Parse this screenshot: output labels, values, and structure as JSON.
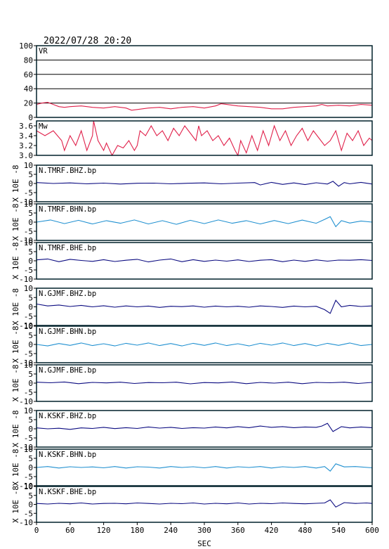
{
  "chart_data": {
    "type": "line",
    "title": "2022/07/28 20:20",
    "xlabel": "SEC",
    "xlim": [
      0,
      600
    ],
    "xticks": [
      0,
      60,
      120,
      180,
      240,
      300,
      360,
      420,
      480,
      540,
      600
    ],
    "colors": {
      "vr": "#e0204a",
      "dark": "#0a0a80",
      "light": "#1e8fd0",
      "frame": "#00202a"
    },
    "panels": [
      {
        "id": "vr",
        "label": "VR",
        "ylim": [
          0,
          100
        ],
        "yticks": [
          0,
          20,
          40,
          60,
          80,
          100
        ],
        "grid": true,
        "color": "vr",
        "x": [
          0,
          10,
          20,
          30,
          40,
          50,
          60,
          80,
          100,
          120,
          140,
          160,
          170,
          180,
          200,
          220,
          240,
          260,
          280,
          300,
          320,
          330,
          340,
          360,
          380,
          400,
          420,
          440,
          460,
          480,
          500,
          510,
          520,
          540,
          560,
          580,
          600
        ],
        "values": [
          18,
          20,
          21,
          18,
          15,
          14,
          15,
          16,
          14,
          13,
          15,
          13,
          10,
          11,
          13,
          14,
          12,
          14,
          15,
          13,
          16,
          19,
          18,
          16,
          15,
          14,
          12,
          12,
          14,
          15,
          16,
          18,
          16,
          17,
          16,
          18,
          17
        ]
      },
      {
        "id": "mw",
        "label": "Mw",
        "ylim": [
          3.0,
          3.7
        ],
        "yticks": [
          3.0,
          3.2,
          3.4,
          3.6
        ],
        "grid": false,
        "color": "vr",
        "x": [
          0,
          15,
          30,
          45,
          50,
          60,
          70,
          80,
          90,
          100,
          102,
          110,
          120,
          125,
          135,
          145,
          155,
          165,
          175,
          180,
          185,
          195,
          205,
          215,
          225,
          235,
          245,
          255,
          265,
          275,
          285,
          290,
          295,
          305,
          315,
          325,
          335,
          345,
          355,
          360,
          365,
          375,
          385,
          395,
          405,
          415,
          425,
          435,
          445,
          455,
          465,
          475,
          485,
          495,
          505,
          515,
          525,
          535,
          545,
          555,
          565,
          575,
          585,
          595,
          600
        ],
        "values": [
          3.5,
          3.4,
          3.5,
          3.3,
          3.1,
          3.4,
          3.2,
          3.5,
          3.1,
          3.4,
          3.7,
          3.3,
          3.1,
          3.25,
          3.0,
          3.2,
          3.15,
          3.3,
          3.1,
          3.2,
          3.5,
          3.4,
          3.6,
          3.4,
          3.5,
          3.3,
          3.55,
          3.4,
          3.6,
          3.45,
          3.3,
          3.6,
          3.4,
          3.5,
          3.3,
          3.4,
          3.2,
          3.35,
          3.1,
          3.0,
          3.3,
          3.05,
          3.4,
          3.1,
          3.5,
          3.2,
          3.6,
          3.3,
          3.5,
          3.2,
          3.4,
          3.55,
          3.3,
          3.5,
          3.35,
          3.2,
          3.3,
          3.5,
          3.1,
          3.45,
          3.3,
          3.5,
          3.2,
          3.35,
          3.3
        ]
      },
      {
        "id": "tmrf-bhz",
        "label": "N.TMRF.BHZ.bp",
        "ylabel": "X 10E -8",
        "ylim": [
          -10,
          10
        ],
        "yticks": [
          -10,
          -5,
          0,
          5,
          10
        ],
        "color": "dark",
        "x": [
          0,
          30,
          60,
          90,
          120,
          150,
          180,
          210,
          240,
          270,
          300,
          330,
          360,
          390,
          400,
          420,
          440,
          460,
          480,
          500,
          520,
          530,
          540,
          550,
          560,
          580,
          600
        ],
        "values": [
          0.5,
          0,
          0.3,
          -0.2,
          0.2,
          -0.3,
          0.1,
          0.2,
          -0.2,
          0.1,
          0.3,
          -0.2,
          0.2,
          0.5,
          -0.8,
          0.6,
          -0.5,
          0.3,
          -0.6,
          0.4,
          -0.3,
          1.2,
          -1.5,
          0.5,
          -0.2,
          0.6,
          -0.3
        ]
      },
      {
        "id": "tmrf-bhn",
        "label": "N.TMRF.BHN.bp",
        "ylabel": "X 10E -8",
        "ylim": [
          -10,
          10
        ],
        "yticks": [
          -10,
          -5,
          0,
          5,
          10
        ],
        "color": "light",
        "x": [
          0,
          25,
          50,
          75,
          100,
          125,
          150,
          175,
          200,
          225,
          250,
          275,
          300,
          325,
          350,
          375,
          400,
          425,
          450,
          475,
          500,
          515,
          525,
          535,
          545,
          560,
          580,
          600
        ],
        "values": [
          0,
          1.2,
          -0.8,
          1,
          -1,
          0.8,
          -0.6,
          1.2,
          -1,
          0.8,
          -1.2,
          1,
          -0.8,
          1.2,
          -0.6,
          0.8,
          -1,
          0.9,
          -0.8,
          1.1,
          -0.6,
          1.5,
          3,
          -2.5,
          0.8,
          -0.5,
          0.6,
          0
        ]
      },
      {
        "id": "tmrf-bhe",
        "label": "N.TMRF.BHE.bp",
        "ylabel": "X 10E -8",
        "ylim": [
          -10,
          10
        ],
        "yticks": [
          -10,
          -5,
          0,
          5,
          10
        ],
        "color": "dark",
        "x": [
          0,
          20,
          40,
          60,
          80,
          100,
          120,
          140,
          160,
          180,
          200,
          220,
          240,
          260,
          280,
          300,
          320,
          340,
          360,
          380,
          400,
          420,
          440,
          460,
          480,
          500,
          520,
          540,
          560,
          580,
          600
        ],
        "values": [
          0.5,
          1,
          -0.5,
          0.8,
          0.2,
          -0.3,
          0.6,
          -0.4,
          0.3,
          0.8,
          -0.6,
          0.4,
          1,
          -0.5,
          0.6,
          -0.3,
          0.4,
          -0.2,
          0.5,
          -0.4,
          0.3,
          0.6,
          -0.5,
          0.4,
          -0.3,
          0.5,
          -0.2,
          0.4,
          0.3,
          0.6,
          0.2
        ]
      },
      {
        "id": "gjmf-bhz",
        "label": "N.GJMF.BHZ.bp",
        "ylabel": "X 10E -8",
        "ylim": [
          -10,
          10
        ],
        "yticks": [
          -10,
          -5,
          0,
          5,
          10
        ],
        "color": "dark",
        "x": [
          0,
          20,
          40,
          60,
          80,
          100,
          120,
          140,
          160,
          180,
          200,
          220,
          240,
          260,
          280,
          300,
          320,
          340,
          360,
          380,
          400,
          420,
          440,
          460,
          480,
          500,
          515,
          525,
          535,
          545,
          560,
          580,
          600
        ],
        "values": [
          1.5,
          0.5,
          1,
          0.2,
          0.8,
          0,
          0.6,
          -0.2,
          0.5,
          0,
          0.4,
          -0.3,
          0.3,
          0.1,
          0.5,
          -0.2,
          0.4,
          0,
          0.3,
          -0.2,
          0.5,
          0.2,
          -0.3,
          0.4,
          0,
          0.3,
          -1.5,
          -3.5,
          3.5,
          0,
          0.8,
          0.2,
          0.5
        ]
      },
      {
        "id": "gjmf-bhn",
        "label": "N.GJMF.BHN.bp",
        "ylabel": "X 10E -8",
        "ylim": [
          -10,
          10
        ],
        "yticks": [
          -10,
          -5,
          0,
          5,
          10
        ],
        "color": "light",
        "x": [
          0,
          20,
          40,
          60,
          80,
          100,
          120,
          140,
          160,
          180,
          200,
          220,
          240,
          260,
          280,
          300,
          320,
          340,
          360,
          380,
          400,
          420,
          440,
          460,
          480,
          500,
          520,
          540,
          560,
          580,
          600
        ],
        "values": [
          0,
          -0.8,
          0.5,
          -0.5,
          0.8,
          -0.6,
          0.4,
          -0.8,
          0.6,
          -0.4,
          0.8,
          -0.6,
          0.5,
          -0.8,
          0.6,
          -0.5,
          0.8,
          -0.6,
          0.4,
          -0.8,
          0.6,
          -0.4,
          0.8,
          -0.6,
          0.5,
          -0.8,
          0.6,
          -0.5,
          0.8,
          -0.6,
          0
        ]
      },
      {
        "id": "gjmf-bhe",
        "label": "N.GJMF.BHE.bp",
        "ylabel": "X 10E -8",
        "ylim": [
          -10,
          10
        ],
        "yticks": [
          -10,
          -5,
          0,
          5,
          10
        ],
        "color": "dark",
        "x": [
          0,
          25,
          50,
          75,
          100,
          125,
          150,
          175,
          200,
          225,
          250,
          275,
          300,
          325,
          350,
          375,
          400,
          425,
          450,
          475,
          500,
          525,
          550,
          575,
          600
        ],
        "values": [
          0.5,
          0.2,
          0.6,
          -0.3,
          0.4,
          0.1,
          0.5,
          -0.2,
          0.3,
          0.2,
          0.5,
          -0.4,
          0.3,
          0.1,
          0.6,
          -0.3,
          0.4,
          0,
          0.5,
          -0.3,
          0.4,
          0.2,
          0.5,
          -0.2,
          0.4
        ]
      },
      {
        "id": "kskf-bhz",
        "label": "N.KSKF.BHZ.bp",
        "ylabel": "X 10E -8",
        "ylim": [
          -10,
          10
        ],
        "yticks": [
          -10,
          -5,
          0,
          5,
          10
        ],
        "color": "dark",
        "x": [
          0,
          20,
          40,
          60,
          80,
          100,
          120,
          140,
          160,
          180,
          200,
          220,
          240,
          260,
          280,
          300,
          320,
          340,
          360,
          380,
          400,
          420,
          440,
          460,
          480,
          500,
          510,
          520,
          530,
          545,
          560,
          580,
          600
        ],
        "values": [
          0.5,
          0,
          0.3,
          -0.3,
          0.5,
          0.2,
          0.8,
          0.1,
          0.6,
          0.2,
          1,
          0.4,
          0.8,
          0.2,
          0.6,
          0.4,
          1,
          0.5,
          1.2,
          0.6,
          1.5,
          0.8,
          1.2,
          0.6,
          1,
          0.8,
          1.5,
          3,
          -1.5,
          1.2,
          0.5,
          1,
          0.6
        ]
      },
      {
        "id": "kskf-bhn",
        "label": "N.KSKF.BHN.bp",
        "ylabel": "X 10E -8",
        "ylim": [
          -10,
          10
        ],
        "yticks": [
          -10,
          -5,
          0,
          5,
          10
        ],
        "color": "light",
        "x": [
          0,
          20,
          40,
          60,
          80,
          100,
          120,
          140,
          160,
          180,
          200,
          220,
          240,
          260,
          280,
          300,
          320,
          340,
          360,
          380,
          400,
          420,
          440,
          460,
          480,
          500,
          515,
          525,
          535,
          550,
          570,
          600
        ],
        "values": [
          0,
          0.5,
          -0.3,
          0.4,
          0,
          0.3,
          -0.2,
          0.5,
          -0.3,
          0.4,
          0.2,
          -0.3,
          0.5,
          0,
          0.4,
          -0.2,
          0.5,
          -0.3,
          0.4,
          0,
          0.5,
          -0.3,
          0.4,
          0,
          0.5,
          -0.3,
          0.5,
          -2,
          2,
          0.3,
          0.5,
          -0.2
        ]
      },
      {
        "id": "kskf-bhe",
        "label": "N.KSKF.BHE.bp",
        "ylabel": "X 10E -8",
        "ylim": [
          -10,
          10
        ],
        "yticks": [
          -10,
          -5,
          0,
          5,
          10
        ],
        "color": "dark",
        "x": [
          0,
          20,
          40,
          60,
          80,
          100,
          120,
          140,
          160,
          180,
          200,
          220,
          240,
          260,
          280,
          300,
          320,
          340,
          360,
          380,
          400,
          420,
          440,
          460,
          480,
          500,
          515,
          525,
          535,
          550,
          570,
          590,
          600
        ],
        "values": [
          0.5,
          0.2,
          0.6,
          0.3,
          0.8,
          0.2,
          0.5,
          0.6,
          0.3,
          0.8,
          0.5,
          0.2,
          0.6,
          0.4,
          0.8,
          0.2,
          0.6,
          0.3,
          0.8,
          0.2,
          0.6,
          0.4,
          0.8,
          0.5,
          0.3,
          0.6,
          0.8,
          2.5,
          -1.5,
          1,
          0.5,
          0.8,
          0.5
        ]
      }
    ]
  }
}
